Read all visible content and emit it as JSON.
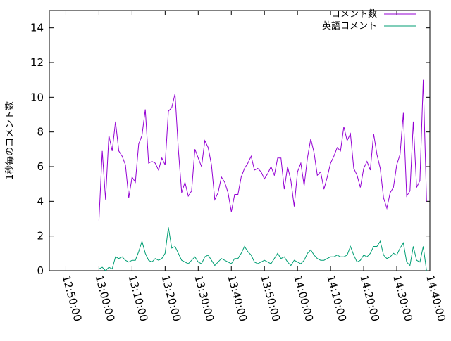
{
  "chart_data": {
    "type": "line",
    "ylabel": "1秒毎のコメント数",
    "ylim": [
      0,
      15
    ],
    "yticks": [
      0,
      2,
      4,
      6,
      8,
      10,
      12,
      14
    ],
    "xlim": [
      "12:45:00",
      "14:40:00"
    ],
    "xticks": [
      "12:50:00",
      "13:00:00",
      "13:10:00",
      "13:20:00",
      "13:30:00",
      "13:40:00",
      "13:50:00",
      "14:00:00",
      "14:10:00",
      "14:20:00",
      "14:30:00",
      "14:40:00"
    ],
    "grid": false,
    "legend_position": "top-right",
    "series": [
      {
        "name": "コメント数",
        "color": "#9400d3",
        "x": [
          "13:00:00",
          "13:01:00",
          "13:02:00",
          "13:03:00",
          "13:04:00",
          "13:05:00",
          "13:06:00",
          "13:07:00",
          "13:08:00",
          "13:09:00",
          "13:10:00",
          "13:11:00",
          "13:12:00",
          "13:13:00",
          "13:14:00",
          "13:15:00",
          "13:16:00",
          "13:17:00",
          "13:18:00",
          "13:19:00",
          "13:20:00",
          "13:21:00",
          "13:22:00",
          "13:23:00",
          "13:24:00",
          "13:25:00",
          "13:26:00",
          "13:27:00",
          "13:28:00",
          "13:29:00",
          "13:30:00",
          "13:31:00",
          "13:32:00",
          "13:33:00",
          "13:34:00",
          "13:35:00",
          "13:36:00",
          "13:37:00",
          "13:38:00",
          "13:39:00",
          "13:40:00",
          "13:41:00",
          "13:42:00",
          "13:43:00",
          "13:44:00",
          "13:45:00",
          "13:46:00",
          "13:47:00",
          "13:48:00",
          "13:49:00",
          "13:50:00",
          "13:51:00",
          "13:52:00",
          "13:53:00",
          "13:54:00",
          "13:55:00",
          "13:56:00",
          "13:57:00",
          "13:58:00",
          "13:59:00",
          "14:00:00",
          "14:01:00",
          "14:02:00",
          "14:03:00",
          "14:04:00",
          "14:05:00",
          "14:06:00",
          "14:07:00",
          "14:08:00",
          "14:09:00",
          "14:10:00",
          "14:11:00",
          "14:12:00",
          "14:13:00",
          "14:14:00",
          "14:15:00",
          "14:16:00",
          "14:17:00",
          "14:18:00",
          "14:19:00",
          "14:20:00",
          "14:21:00",
          "14:22:00",
          "14:23:00",
          "14:24:00",
          "14:25:00",
          "14:26:00",
          "14:27:00",
          "14:28:00",
          "14:29:00",
          "14:30:00",
          "14:31:00",
          "14:32:00",
          "14:33:00",
          "14:34:00",
          "14:35:00",
          "14:36:00",
          "14:37:00",
          "14:38:00",
          "14:39:00",
          "14:40:00"
        ],
        "values": [
          2.9,
          6.9,
          4.1,
          7.8,
          6.9,
          8.6,
          6.9,
          6.6,
          6.1,
          4.2,
          5.4,
          5.1,
          7.3,
          7.8,
          9.3,
          6.2,
          6.3,
          6.2,
          5.8,
          6.5,
          6.1,
          9.2,
          9.4,
          10.2,
          7.0,
          4.5,
          5.1,
          4.3,
          4.6,
          7.0,
          6.5,
          6.0,
          7.5,
          7.1,
          6.1,
          4.1,
          4.5,
          5.4,
          5.1,
          4.5,
          3.4,
          4.4,
          4.4,
          5.4,
          5.9,
          6.2,
          6.6,
          5.8,
          5.9,
          5.7,
          5.3,
          5.6,
          6.0,
          5.5,
          6.5,
          6.5,
          4.7,
          6.0,
          5.2,
          3.7,
          5.7,
          6.2,
          4.9,
          6.5,
          7.6,
          6.8,
          5.5,
          5.7,
          4.7,
          5.4,
          6.2,
          6.6,
          7.1,
          6.9,
          8.3,
          7.5,
          7.9,
          5.9,
          5.5,
          4.8,
          5.9,
          6.3,
          5.8,
          7.9,
          6.7,
          5.9,
          4.2,
          3.6,
          4.5,
          4.8,
          6.1,
          6.7,
          9.1,
          4.3,
          4.6,
          8.6,
          4.8,
          5.2,
          11.0,
          4.0,
          null
        ],
        "note": "y-values read from plotted line"
      },
      {
        "name": "英語コメント",
        "color": "#009e73",
        "x": [
          "13:00:00",
          "13:01:00",
          "13:02:00",
          "13:03:00",
          "13:04:00",
          "13:05:00",
          "13:06:00",
          "13:07:00",
          "13:08:00",
          "13:09:00",
          "13:10:00",
          "13:11:00",
          "13:12:00",
          "13:13:00",
          "13:14:00",
          "13:15:00",
          "13:16:00",
          "13:17:00",
          "13:18:00",
          "13:19:00",
          "13:20:00",
          "13:21:00",
          "13:22:00",
          "13:23:00",
          "13:24:00",
          "13:25:00",
          "13:26:00",
          "13:27:00",
          "13:28:00",
          "13:29:00",
          "13:30:00",
          "13:31:00",
          "13:32:00",
          "13:33:00",
          "13:34:00",
          "13:35:00",
          "13:36:00",
          "13:37:00",
          "13:38:00",
          "13:39:00",
          "13:40:00",
          "13:41:00",
          "13:42:00",
          "13:43:00",
          "13:44:00",
          "13:45:00",
          "13:46:00",
          "13:47:00",
          "13:48:00",
          "13:49:00",
          "13:50:00",
          "13:51:00",
          "13:52:00",
          "13:53:00",
          "13:54:00",
          "13:55:00",
          "13:56:00",
          "13:57:00",
          "13:58:00",
          "13:59:00",
          "14:00:00",
          "14:01:00",
          "14:02:00",
          "14:03:00",
          "14:04:00",
          "14:05:00",
          "14:06:00",
          "14:07:00",
          "14:08:00",
          "14:09:00",
          "14:10:00",
          "14:11:00",
          "14:12:00",
          "14:13:00",
          "14:14:00",
          "14:15:00",
          "14:16:00",
          "14:17:00",
          "14:18:00",
          "14:19:00",
          "14:20:00",
          "14:21:00",
          "14:22:00",
          "14:23:00",
          "14:24:00",
          "14:25:00",
          "14:26:00",
          "14:27:00",
          "14:28:00",
          "14:29:00",
          "14:30:00",
          "14:31:00",
          "14:32:00",
          "14:33:00",
          "14:34:00",
          "14:35:00",
          "14:36:00",
          "14:37:00",
          "14:38:00",
          "14:39:00",
          "14:40:00"
        ],
        "values": [
          0.1,
          0.2,
          0.0,
          0.2,
          0.1,
          0.8,
          0.7,
          0.8,
          0.6,
          0.5,
          0.6,
          0.6,
          1.1,
          1.7,
          1.0,
          0.6,
          0.5,
          0.7,
          0.6,
          0.7,
          1.0,
          2.5,
          1.3,
          1.4,
          1.0,
          0.6,
          0.5,
          0.4,
          0.6,
          0.8,
          0.5,
          0.4,
          0.8,
          0.9,
          0.6,
          0.3,
          0.5,
          0.7,
          0.6,
          0.5,
          0.4,
          0.7,
          0.7,
          1.0,
          1.4,
          1.1,
          0.9,
          0.5,
          0.4,
          0.5,
          0.6,
          0.5,
          0.4,
          0.7,
          1.0,
          0.7,
          0.8,
          0.5,
          0.3,
          0.6,
          0.5,
          0.4,
          0.6,
          1.0,
          1.2,
          0.9,
          0.7,
          0.6,
          0.6,
          0.7,
          0.8,
          0.8,
          0.9,
          0.8,
          0.8,
          0.9,
          1.4,
          0.9,
          0.5,
          0.6,
          0.9,
          0.8,
          1.0,
          1.4,
          1.4,
          1.7,
          0.9,
          0.7,
          0.8,
          1.0,
          0.9,
          1.3,
          1.6,
          0.5,
          0.3,
          1.4,
          0.6,
          0.5,
          1.4,
          0.0,
          null
        ]
      }
    ]
  }
}
